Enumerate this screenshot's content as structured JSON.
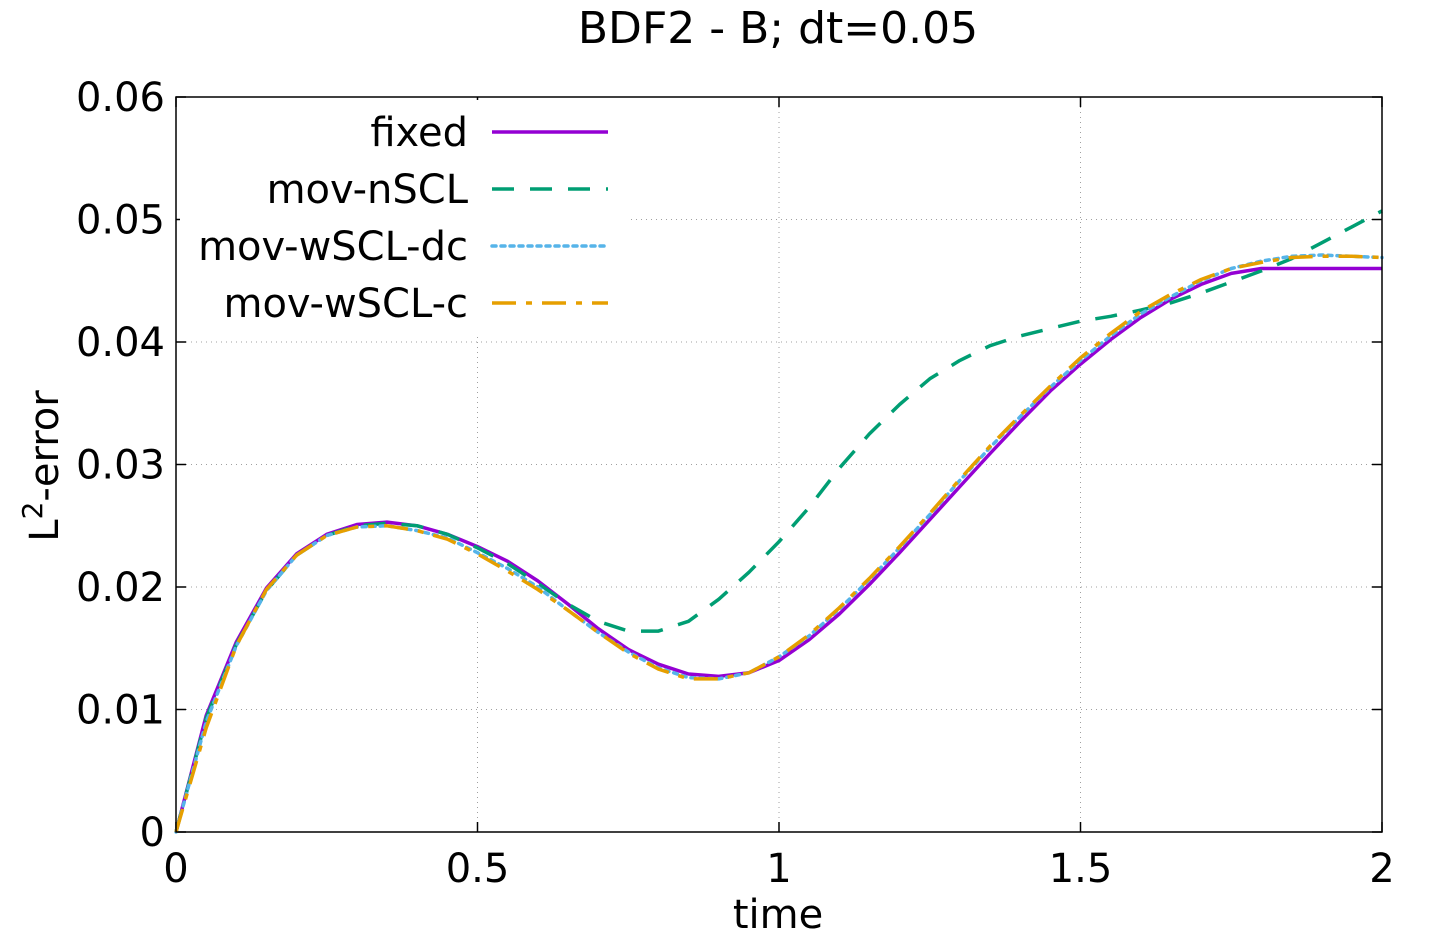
{
  "chart_data": {
    "type": "line",
    "title": "BDF2 - B; dt=0.05",
    "xlabel": "time",
    "ylabel_base": "L",
    "ylabel_sup": "2",
    "ylabel_rest": "-error",
    "xlim": [
      0,
      2
    ],
    "ylim": [
      0,
      0.06
    ],
    "xticks": [
      0,
      0.5,
      1,
      1.5,
      2
    ],
    "xtick_labels": [
      "0",
      "0.5",
      "1",
      "1.5",
      "2"
    ],
    "yticks": [
      0,
      0.01,
      0.02,
      0.03,
      0.04,
      0.05,
      0.06
    ],
    "ytick_labels": [
      "0",
      "0.01",
      "0.02",
      "0.03",
      "0.04",
      "0.05",
      "0.06"
    ],
    "grid": true,
    "legend_position": "top-left",
    "series": [
      {
        "name": "fixed",
        "color": "#9400d3",
        "dash": "solid",
        "x": [
          0,
          0.05,
          0.1,
          0.15,
          0.2,
          0.25,
          0.3,
          0.35,
          0.4,
          0.45,
          0.5,
          0.55,
          0.6,
          0.65,
          0.7,
          0.75,
          0.8,
          0.85,
          0.9,
          0.95,
          1.0,
          1.05,
          1.1,
          1.15,
          1.2,
          1.25,
          1.3,
          1.35,
          1.4,
          1.45,
          1.5,
          1.55,
          1.6,
          1.65,
          1.7,
          1.75,
          1.8,
          1.85,
          1.9,
          1.95,
          2.0
        ],
        "y": [
          0,
          0.0095,
          0.0155,
          0.0199,
          0.0227,
          0.0243,
          0.0251,
          0.0253,
          0.025,
          0.0243,
          0.0233,
          0.0221,
          0.0205,
          0.0186,
          0.0166,
          0.0149,
          0.0137,
          0.0129,
          0.0127,
          0.013,
          0.014,
          0.0157,
          0.0178,
          0.0202,
          0.0228,
          0.0255,
          0.0282,
          0.0309,
          0.0335,
          0.036,
          0.0382,
          0.0402,
          0.042,
          0.0435,
          0.0447,
          0.0456,
          0.046,
          0.046,
          0.046,
          0.046,
          0.046
        ]
      },
      {
        "name": "mov-nSCL",
        "color": "#009e73",
        "dash": "long-dash",
        "x": [
          0,
          0.05,
          0.1,
          0.15,
          0.2,
          0.25,
          0.3,
          0.35,
          0.4,
          0.45,
          0.5,
          0.55,
          0.6,
          0.65,
          0.7,
          0.75,
          0.8,
          0.85,
          0.9,
          0.95,
          1.0,
          1.05,
          1.1,
          1.15,
          1.2,
          1.25,
          1.3,
          1.35,
          1.4,
          1.45,
          1.5,
          1.55,
          1.6,
          1.65,
          1.7,
          1.75,
          1.8,
          1.85,
          1.9,
          1.95,
          2.0
        ],
        "y": [
          0,
          0.0093,
          0.0153,
          0.0197,
          0.0226,
          0.0242,
          0.025,
          0.0252,
          0.025,
          0.0243,
          0.0232,
          0.0219,
          0.0203,
          0.0186,
          0.0172,
          0.0164,
          0.0164,
          0.0172,
          0.019,
          0.0212,
          0.0237,
          0.0265,
          0.0297,
          0.0325,
          0.0349,
          0.037,
          0.0385,
          0.0397,
          0.0405,
          0.0411,
          0.0417,
          0.0421,
          0.0426,
          0.0432,
          0.044,
          0.0449,
          0.0458,
          0.0468,
          0.0481,
          0.0494,
          0.0507
        ]
      },
      {
        "name": "mov-wSCL-dc",
        "color": "#56b4e9",
        "dash": "dotted",
        "x": [
          0,
          0.05,
          0.1,
          0.15,
          0.2,
          0.25,
          0.3,
          0.35,
          0.4,
          0.45,
          0.5,
          0.55,
          0.6,
          0.65,
          0.7,
          0.75,
          0.8,
          0.85,
          0.9,
          0.95,
          1.0,
          1.05,
          1.1,
          1.15,
          1.2,
          1.25,
          1.3,
          1.35,
          1.4,
          1.45,
          1.5,
          1.55,
          1.6,
          1.65,
          1.7,
          1.75,
          1.8,
          1.85,
          1.9,
          1.95,
          2.0
        ],
        "y": [
          0,
          0.009,
          0.0152,
          0.0197,
          0.0226,
          0.0242,
          0.0249,
          0.025,
          0.0246,
          0.024,
          0.0228,
          0.0215,
          0.02,
          0.0181,
          0.0163,
          0.0147,
          0.0134,
          0.0126,
          0.0125,
          0.013,
          0.0143,
          0.016,
          0.0182,
          0.0206,
          0.0232,
          0.0259,
          0.0287,
          0.0314,
          0.0339,
          0.0363,
          0.0385,
          0.0405,
          0.0423,
          0.0437,
          0.045,
          0.046,
          0.0466,
          0.047,
          0.0471,
          0.047,
          0.0469
        ]
      },
      {
        "name": "mov-wSCL-c",
        "color": "#e69f00",
        "dash": "dash-dot",
        "x": [
          0,
          0.05,
          0.1,
          0.15,
          0.2,
          0.25,
          0.3,
          0.35,
          0.4,
          0.45,
          0.5,
          0.55,
          0.6,
          0.65,
          0.7,
          0.75,
          0.8,
          0.85,
          0.9,
          0.95,
          1.0,
          1.05,
          1.1,
          1.15,
          1.2,
          1.25,
          1.3,
          1.35,
          1.4,
          1.45,
          1.5,
          1.55,
          1.6,
          1.65,
          1.7,
          1.75,
          1.8,
          1.85,
          1.9,
          1.95,
          2.0
        ],
        "y": [
          0,
          0.0085,
          0.0152,
          0.0198,
          0.0226,
          0.0242,
          0.0249,
          0.025,
          0.0246,
          0.0239,
          0.0227,
          0.0213,
          0.0198,
          0.0181,
          0.0163,
          0.0146,
          0.0133,
          0.0125,
          0.0125,
          0.013,
          0.0143,
          0.0161,
          0.0183,
          0.0207,
          0.0233,
          0.026,
          0.0288,
          0.0315,
          0.034,
          0.0364,
          0.0387,
          0.0407,
          0.0425,
          0.0439,
          0.0451,
          0.046,
          0.0465,
          0.0469,
          0.047,
          0.047,
          0.0469
        ]
      }
    ]
  }
}
